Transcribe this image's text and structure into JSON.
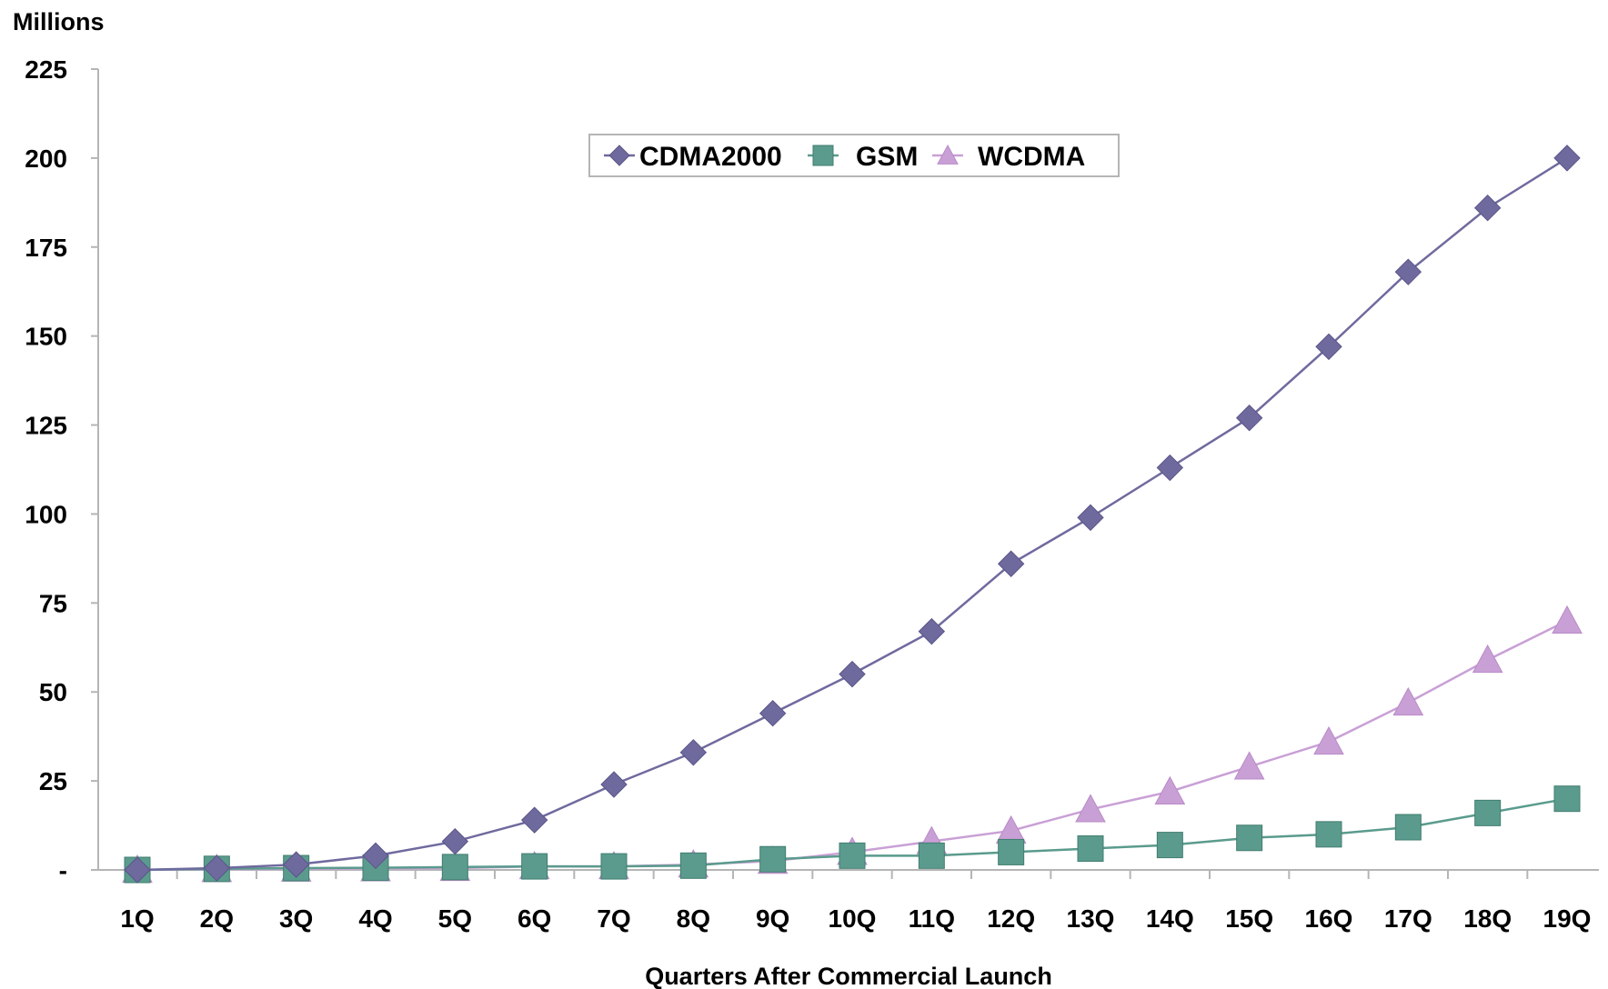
{
  "chart_data": {
    "type": "line",
    "title": "",
    "ylabel": "Millions",
    "xlabel": "Quarters After Commercial Launch",
    "categories": [
      "1Q",
      "2Q",
      "3Q",
      "4Q",
      "5Q",
      "6Q",
      "7Q",
      "8Q",
      "9Q",
      "10Q",
      "11Q",
      "12Q",
      "13Q",
      "14Q",
      "15Q",
      "16Q",
      "17Q",
      "18Q",
      "19Q"
    ],
    "ylim": [
      0,
      225
    ],
    "yticks": [
      0,
      25,
      50,
      75,
      100,
      125,
      150,
      175,
      200,
      225
    ],
    "ytick_labels": [
      "-",
      "25",
      "50",
      "75",
      "100",
      "125",
      "150",
      "175",
      "200",
      "225"
    ],
    "grid": false,
    "legend_position": "top-center",
    "series": [
      {
        "name": "CDMA2000",
        "marker": "diamond",
        "color": "#6f6a9e",
        "values": [
          0,
          0.5,
          1.5,
          4,
          8,
          14,
          24,
          33,
          44,
          55,
          67,
          86,
          99,
          113,
          127,
          147,
          168,
          186,
          200
        ]
      },
      {
        "name": "GSM",
        "marker": "square",
        "color": "#5a9b8d",
        "values": [
          0,
          0.3,
          0.5,
          0.6,
          0.8,
          1,
          1,
          1.2,
          3,
          4,
          4,
          5,
          6,
          7,
          9,
          10,
          12,
          16,
          20
        ]
      },
      {
        "name": "WCDMA",
        "marker": "triangle",
        "color": "#c9a0d6",
        "values": [
          0,
          0.2,
          0.3,
          0.4,
          0.5,
          1,
          1,
          1.5,
          2.5,
          5,
          8,
          11,
          17,
          22,
          29,
          36,
          47,
          59,
          70
        ]
      }
    ]
  }
}
